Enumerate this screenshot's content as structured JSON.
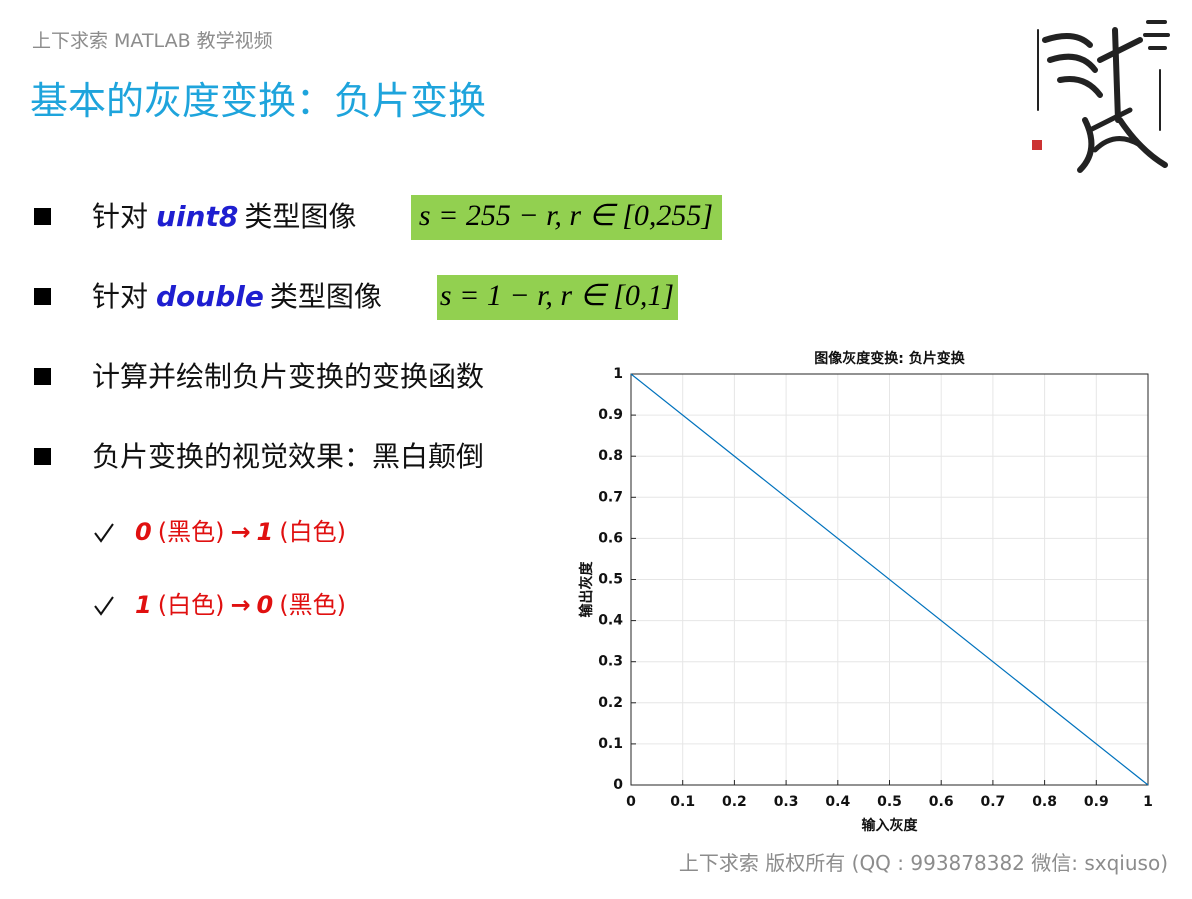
{
  "header": {
    "caption": "上下求索 MATLAB 教学视频",
    "title": "基本的灰度变换：负片变换"
  },
  "bullets": [
    {
      "prefix": "针对",
      "keyword": "uint8",
      "suffix": "类型图像",
      "formula": "s = 255 − r,  r ∈ [0,255]"
    },
    {
      "prefix": "针对",
      "keyword": "double",
      "suffix": "类型图像",
      "formula": "s = 1 − r,  r ∈ [0,1]"
    },
    {
      "text": "计算并绘制负片变换的变换函数"
    },
    {
      "text": "负片变换的视觉效果：黑白颠倒"
    }
  ],
  "checks": [
    [
      "0",
      "(黑色)",
      "→",
      "1",
      "(白色)"
    ],
    [
      "1",
      "(白色)",
      "→",
      "0",
      "(黑色)"
    ]
  ],
  "footer": "上下求索  版权所有  (QQ : 993878382   微信: sxqiuso)",
  "chart_data": {
    "type": "line",
    "title": "图像灰度变换: 负片变换",
    "x_label": "输入灰度",
    "y_label": "输出灰度",
    "x": [
      0,
      1
    ],
    "values": [
      1,
      0
    ],
    "color": "#0072bd",
    "xlim": [
      0,
      1
    ],
    "ylim": [
      0,
      1
    ],
    "xticks": [
      0,
      0.1,
      0.2,
      0.3,
      0.4,
      0.5,
      0.6,
      0.7,
      0.8,
      0.9,
      1
    ],
    "yticks": [
      0,
      0.1,
      0.2,
      0.3,
      0.4,
      0.5,
      0.6,
      0.7,
      0.8,
      0.9,
      1
    ],
    "grid": true
  }
}
